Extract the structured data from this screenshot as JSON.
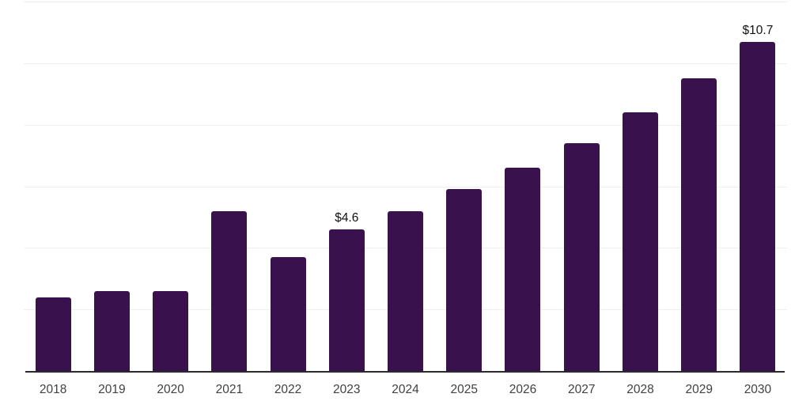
{
  "page": {
    "background": "#ffffff"
  },
  "chart_data": {
    "type": "bar",
    "title": "",
    "xlabel": "",
    "ylabel": "",
    "categories": [
      "2018",
      "2019",
      "2020",
      "2021",
      "2022",
      "2023",
      "2024",
      "2025",
      "2026",
      "2027",
      "2028",
      "2029",
      "2030"
    ],
    "values": [
      2.4,
      2.6,
      2.6,
      5.2,
      3.7,
      4.6,
      5.2,
      5.9,
      6.6,
      7.4,
      8.4,
      9.5,
      10.7
    ],
    "data_labels": [
      "",
      "",
      "",
      "",
      "",
      "$4.6",
      "",
      "",
      "",
      "",
      "",
      "",
      "$10.7"
    ],
    "ylim": [
      0,
      12
    ],
    "grid": true,
    "gridline_values": [
      2,
      4,
      6,
      8,
      10,
      12
    ],
    "legend": "none",
    "yaxis_tick_labels": "none",
    "colors": {
      "bar": "#38114D",
      "axis": "#2A2A2A",
      "gridline": "#EFEFEF",
      "data_label": "#111111",
      "tick_label": "#414141"
    }
  }
}
